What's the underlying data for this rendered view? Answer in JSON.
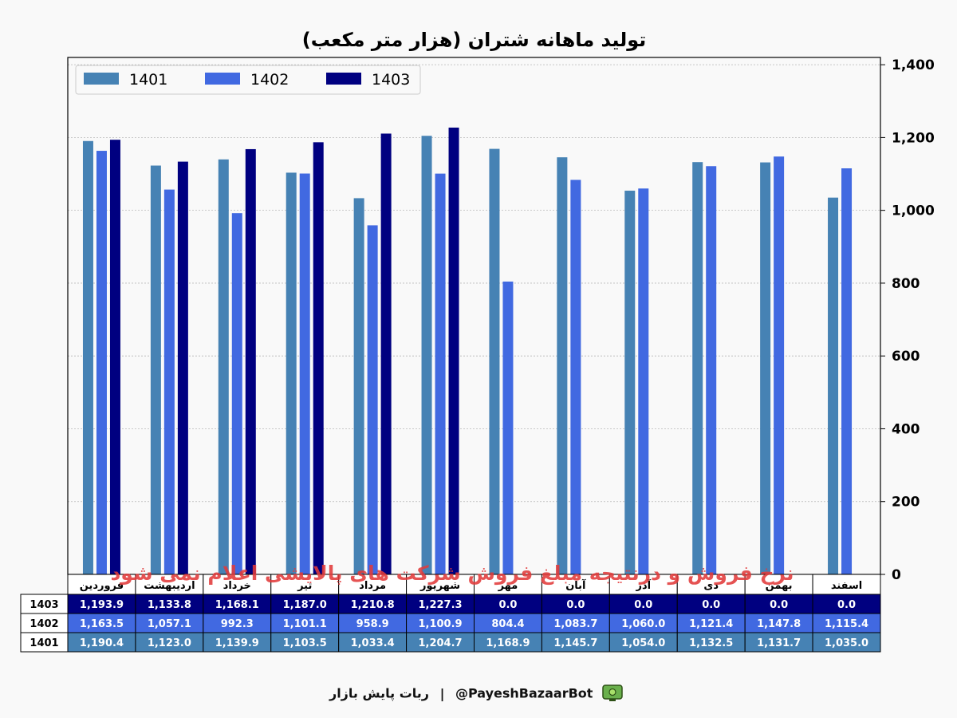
{
  "chart_data": {
    "type": "bar",
    "title": "تولید ماهانه شتران (هزار متر مکعب)",
    "categories": [
      "فروردین",
      "اردیبهشت",
      "خرداد",
      "تیر",
      "مرداد",
      "شهریور",
      "مهر",
      "آبان",
      "آذر",
      "دی",
      "بهمن",
      "اسفند"
    ],
    "series": [
      {
        "name": "1401",
        "color": "#4682b4",
        "values": [
          1190.4,
          1123.0,
          1139.9,
          1103.5,
          1033.4,
          1204.7,
          1168.9,
          1145.7,
          1054.0,
          1132.5,
          1131.7,
          1035.0
        ]
      },
      {
        "name": "1402",
        "color": "#4169e1",
        "values": [
          1163.5,
          1057.1,
          992.3,
          1101.1,
          958.9,
          1100.9,
          804.4,
          1083.7,
          1060.0,
          1121.4,
          1147.8,
          1115.4
        ]
      },
      {
        "name": "1403",
        "color": "#000080",
        "values": [
          1193.9,
          1133.8,
          1168.1,
          1187.0,
          1210.8,
          1227.3,
          0.0,
          0.0,
          0.0,
          0.0,
          0.0,
          0.0
        ]
      }
    ],
    "yticks": [
      "0",
      "200",
      "400",
      "600",
      "800",
      "1,000",
      "1,200",
      "1,400"
    ],
    "ylim": [
      0,
      1420
    ],
    "grid": true,
    "legend_position": "top-left",
    "y_axis_side": "right",
    "table": {
      "rows": [
        {
          "label": "1403",
          "color": "#000080",
          "cells": [
            "1,193.9",
            "1,133.8",
            "1,168.1",
            "1,187.0",
            "1,210.8",
            "1,227.3",
            "0.0",
            "0.0",
            "0.0",
            "0.0",
            "0.0",
            "0.0"
          ]
        },
        {
          "label": "1402",
          "color": "#4169e1",
          "cells": [
            "1,163.5",
            "1,057.1",
            "992.3",
            "1,101.1",
            "958.9",
            "1,100.9",
            "804.4",
            "1,083.7",
            "1,060.0",
            "1,121.4",
            "1,147.8",
            "1,115.4"
          ]
        },
        {
          "label": "1401",
          "color": "#4682b4",
          "cells": [
            "1,190.4",
            "1,123.0",
            "1,139.9",
            "1,103.5",
            "1,033.4",
            "1,204.7",
            "1,168.9",
            "1,145.7",
            "1,054.0",
            "1,132.5",
            "1,131.7",
            "1,035.0"
          ]
        }
      ]
    },
    "annotation": "نرخ فروش و درنتیجه مبلغ فروش شرکت های پالایشی اعلام نمی شود"
  },
  "footer": {
    "bot_name": "ربات پایش بازار",
    "separator": "|",
    "handle": "@PayeshBazaarBot",
    "icon": "bot-icon"
  }
}
